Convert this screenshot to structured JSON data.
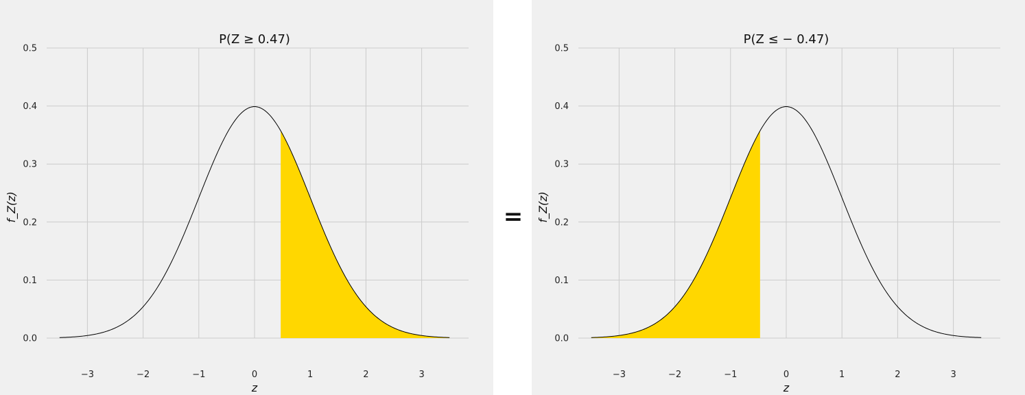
{
  "equals_sign": "=",
  "colors": {
    "fill": "#ffd700",
    "curve": "#000000",
    "grid": "#cbcbcb",
    "background": "#f0f0f0"
  },
  "chart_data": [
    {
      "type": "area",
      "title": "P(Z ≥ 0.47)",
      "xlabel": "z",
      "ylabel": "f_Z(z)",
      "xlim": [
        -3.5,
        3.5
      ],
      "ylim": [
        0,
        0.5
      ],
      "xticks": [
        "−3",
        "−2",
        "−1",
        "0",
        "1",
        "2",
        "3"
      ],
      "yticks": [
        "0.0",
        "0.1",
        "0.2",
        "0.3",
        "0.4",
        "0.5"
      ],
      "grid": true,
      "series": [
        {
          "kind": "curve",
          "x_range": [
            -3.5,
            3.5
          ],
          "peak": 0.3989,
          "values_at": {
            "-3": 0.0044,
            "-2": 0.054,
            "-1": 0.242,
            "0": 0.3989,
            "1": 0.242,
            "2": 0.054,
            "3": 0.0044
          }
        },
        {
          "kind": "shaded",
          "from": 0.47,
          "to": 3.5,
          "color": "#ffd700"
        }
      ]
    },
    {
      "type": "area",
      "title": "P(Z ≤ − 0.47)",
      "xlabel": "z",
      "ylabel": "f_Z(z)",
      "xlim": [
        -3.5,
        3.5
      ],
      "ylim": [
        0,
        0.5
      ],
      "xticks": [
        "−3",
        "−2",
        "−1",
        "0",
        "1",
        "2",
        "3"
      ],
      "yticks": [
        "0.0",
        "0.1",
        "0.2",
        "0.3",
        "0.4",
        "0.5"
      ],
      "grid": true,
      "series": [
        {
          "kind": "curve",
          "x_range": [
            -3.5,
            3.5
          ],
          "peak": 0.3989,
          "values_at": {
            "-3": 0.0044,
            "-2": 0.054,
            "-1": 0.242,
            "0": 0.3989,
            "1": 0.242,
            "2": 0.054,
            "3": 0.0044
          }
        },
        {
          "kind": "shaded",
          "from": -3.5,
          "to": -0.47,
          "color": "#ffd700"
        }
      ]
    }
  ]
}
